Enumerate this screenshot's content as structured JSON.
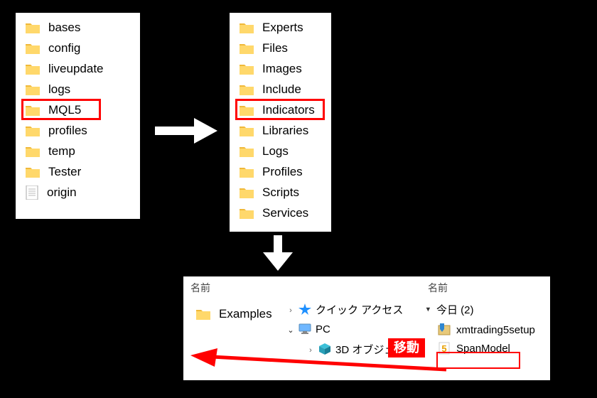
{
  "colors": {
    "background": "#000000",
    "panel": "#ffffff",
    "highlight": "#ff0000",
    "move_label_bg": "#ff0000",
    "move_label_fg": "#ffffff",
    "folder_fill": "#ffd86b",
    "folder_tab": "#f0b93a",
    "star_blue": "#1e90ff",
    "pc_blue": "#6fb7ff",
    "cube_blue": "#3cc0d8",
    "installer_blue": "#2f86d0"
  },
  "panel1": {
    "items": [
      {
        "label": "bases",
        "type": "folder"
      },
      {
        "label": "config",
        "type": "folder"
      },
      {
        "label": "liveupdate",
        "type": "folder"
      },
      {
        "label": "logs",
        "type": "folder"
      },
      {
        "label": "MQL5",
        "type": "folder",
        "highlight": true
      },
      {
        "label": "profiles",
        "type": "folder"
      },
      {
        "label": "temp",
        "type": "folder"
      },
      {
        "label": "Tester",
        "type": "folder"
      },
      {
        "label": "origin",
        "type": "textfile"
      }
    ]
  },
  "panel2": {
    "items": [
      {
        "label": "Experts",
        "type": "folder"
      },
      {
        "label": "Files",
        "type": "folder"
      },
      {
        "label": "Images",
        "type": "folder"
      },
      {
        "label": "Include",
        "type": "folder"
      },
      {
        "label": "Indicators",
        "type": "folder",
        "highlight": true
      },
      {
        "label": "Libraries",
        "type": "folder"
      },
      {
        "label": "Logs",
        "type": "folder"
      },
      {
        "label": "Profiles",
        "type": "folder"
      },
      {
        "label": "Scripts",
        "type": "folder"
      },
      {
        "label": "Services",
        "type": "folder"
      }
    ]
  },
  "panel3_left": {
    "header": "名前",
    "items": [
      {
        "label": "Examples",
        "type": "folder"
      }
    ]
  },
  "panel3_nav": {
    "items": [
      {
        "label": "クイック アクセス",
        "icon": "star",
        "expanded": false
      },
      {
        "label": "PC",
        "icon": "pc",
        "expanded": true
      },
      {
        "label": "3D オブジェクト",
        "icon": "cube",
        "expanded": false
      }
    ]
  },
  "panel3_right": {
    "header": "名前",
    "group": "今日 (2)",
    "items": [
      {
        "label": "xmtrading5setup",
        "icon": "installer"
      },
      {
        "label": "SpanModel",
        "icon": "mq5",
        "highlight": true
      }
    ]
  },
  "move_label": "移動"
}
